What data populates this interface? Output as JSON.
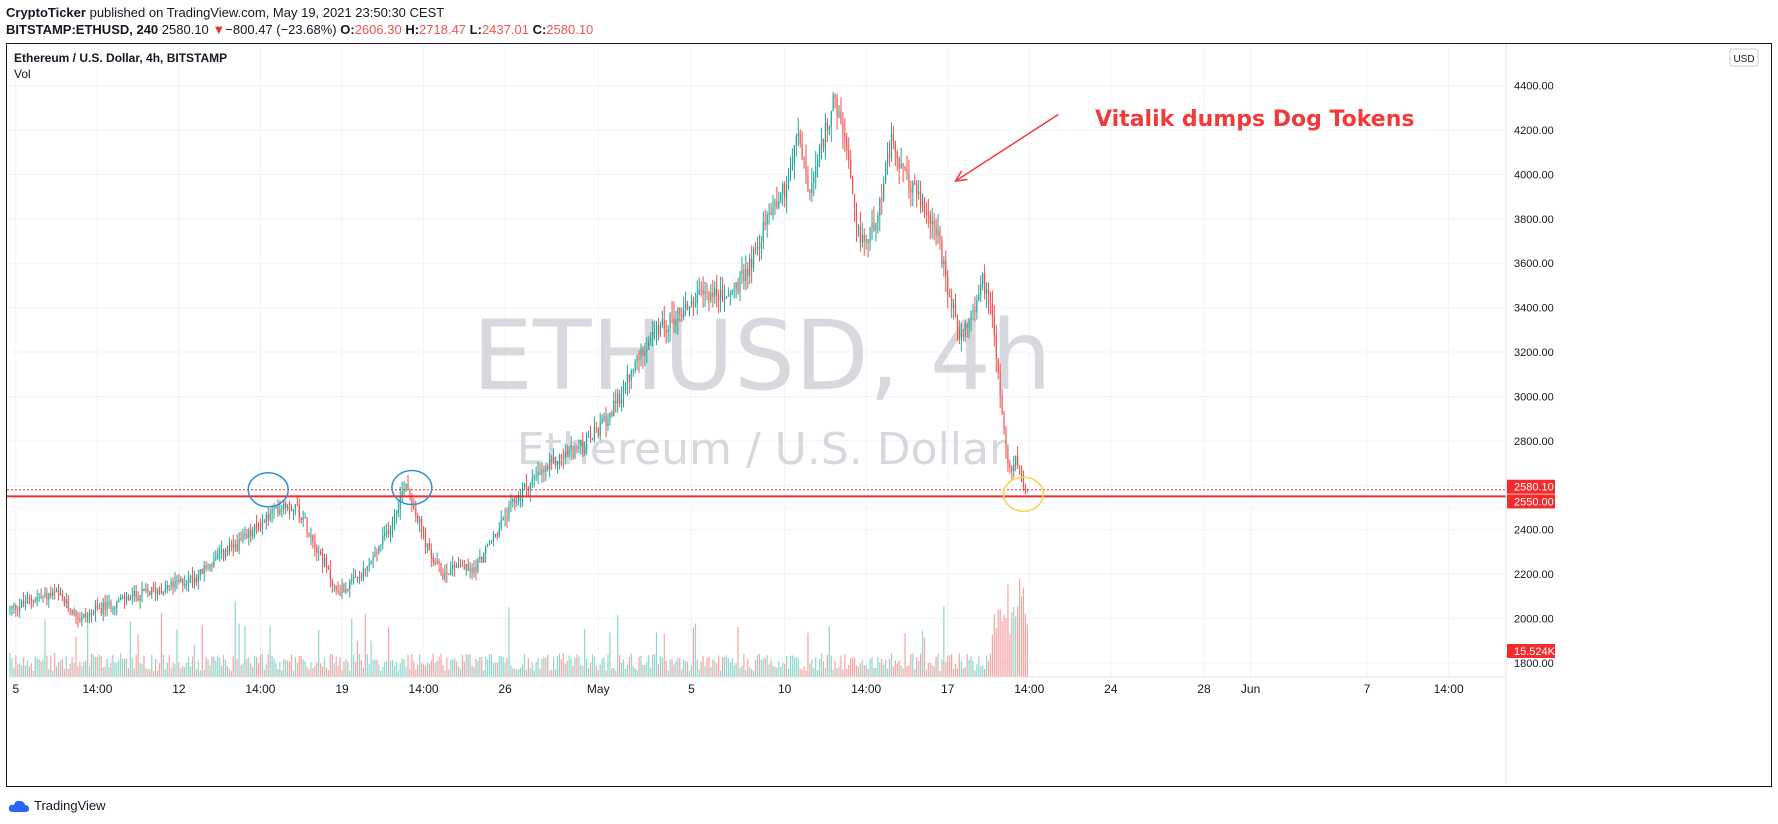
{
  "header": {
    "author": "CryptoTicker",
    "published_text": "published on TradingView.com, May 19, 2021 23:50:30 CEST",
    "symbol": "BITSTAMP:ETHUSD, 240",
    "last": "2580.10",
    "change_arrow": "▼",
    "change": "−800.47 (−23.68%)",
    "o_label": "O:",
    "o": "2606.30",
    "h_label": "H:",
    "h": "2718.47",
    "l_label": "L:",
    "l": "2437.01",
    "c_label": "C:",
    "c": "2580.10"
  },
  "chart_info": {
    "title": "Ethereum / U.S. Dollar, 4h, BITSTAMP",
    "vol_label": "Vol",
    "currency_button": "USD",
    "watermark_main": "ETHUSD, 4h",
    "watermark_sub": "Ethereum / U.S. Dollar"
  },
  "annotation": {
    "text": "Vitalik dumps Dog Tokens"
  },
  "footer": {
    "brand": "TradingView"
  },
  "colors": {
    "up": "#26a69a",
    "down": "#ef5350",
    "up_vol": "#8fd6cc",
    "down_vol": "#f4a5a3",
    "annotation": "#f23a3a",
    "level_line": "#f22c2c",
    "circle_blue": "#2f8fd8",
    "circle_yellow": "#f5d742"
  },
  "chart_data": {
    "type": "candlestick",
    "title": "Ethereum / U.S. Dollar, 4h, BITSTAMP",
    "interval": "4h",
    "ylim": [
      1700,
      4600
    ],
    "y_ticks": [
      1800,
      2000,
      2200,
      2400,
      2600,
      2800,
      3000,
      3200,
      3400,
      3600,
      3800,
      4000,
      4200,
      4400
    ],
    "x_tick_labels": [
      {
        "label": "5",
        "index": 3
      },
      {
        "label": "14:00",
        "index": 45
      },
      {
        "label": "12",
        "index": 87
      },
      {
        "label": "14:00",
        "index": 129
      },
      {
        "label": "19",
        "index": 171
      },
      {
        "label": "14:00",
        "index": 213
      },
      {
        "label": "26",
        "index": 255
      },
      {
        "label": "May",
        "index": 303
      },
      {
        "label": "5",
        "index": 351
      },
      {
        "label": "10",
        "index": 399
      },
      {
        "label": "14:00",
        "index": 441
      },
      {
        "label": "17",
        "index": 483
      },
      {
        "label": "14:00",
        "index": 525
      },
      {
        "label": "24",
        "index": 567
      },
      {
        "label": "28",
        "index": 615
      },
      {
        "label": "Jun",
        "index": 639
      },
      {
        "label": "7",
        "index": 699
      },
      {
        "label": "14:00",
        "index": 741
      }
    ],
    "x_count": 769,
    "last_index": 524,
    "waypoints": [
      [
        0,
        2040
      ],
      [
        12,
        2090
      ],
      [
        24,
        2110
      ],
      [
        36,
        2000
      ],
      [
        48,
        2050
      ],
      [
        60,
        2090
      ],
      [
        72,
        2120
      ],
      [
        84,
        2150
      ],
      [
        96,
        2190
      ],
      [
        108,
        2280
      ],
      [
        120,
        2350
      ],
      [
        132,
        2450
      ],
      [
        141,
        2520
      ],
      [
        148,
        2500
      ],
      [
        155,
        2380
      ],
      [
        162,
        2250
      ],
      [
        168,
        2120
      ],
      [
        175,
        2150
      ],
      [
        182,
        2200
      ],
      [
        189,
        2300
      ],
      [
        196,
        2420
      ],
      [
        204,
        2620
      ],
      [
        210,
        2450
      ],
      [
        216,
        2290
      ],
      [
        223,
        2200
      ],
      [
        230,
        2250
      ],
      [
        238,
        2210
      ],
      [
        247,
        2330
      ],
      [
        256,
        2470
      ],
      [
        264,
        2580
      ],
      [
        272,
        2640
      ],
      [
        280,
        2700
      ],
      [
        288,
        2750
      ],
      [
        296,
        2780
      ],
      [
        304,
        2860
      ],
      [
        312,
        2960
      ],
      [
        320,
        3100
      ],
      [
        328,
        3250
      ],
      [
        336,
        3310
      ],
      [
        344,
        3370
      ],
      [
        352,
        3430
      ],
      [
        360,
        3470
      ],
      [
        368,
        3440
      ],
      [
        376,
        3510
      ],
      [
        384,
        3650
      ],
      [
        392,
        3850
      ],
      [
        400,
        3950
      ],
      [
        406,
        4180
      ],
      [
        412,
        3900
      ],
      [
        418,
        4120
      ],
      [
        424,
        4330
      ],
      [
        430,
        4170
      ],
      [
        436,
        3730
      ],
      [
        442,
        3700
      ],
      [
        448,
        3880
      ],
      [
        454,
        4140
      ],
      [
        460,
        4000
      ],
      [
        466,
        3930
      ],
      [
        471,
        3840
      ],
      [
        477,
        3760
      ],
      [
        483,
        3470
      ],
      [
        489,
        3280
      ],
      [
        495,
        3350
      ],
      [
        501,
        3520
      ],
      [
        506,
        3400
      ],
      [
        509,
        3100
      ],
      [
        512,
        2860
      ],
      [
        514,
        2700
      ],
      [
        516,
        2640
      ],
      [
        518,
        2720
      ],
      [
        520,
        2660
      ],
      [
        522,
        2610
      ],
      [
        524,
        2580
      ]
    ],
    "horizontal_levels": [
      {
        "value": 2580.1,
        "label": "2580.10",
        "style": "dotted",
        "note": "last price"
      },
      {
        "value": 2550.0,
        "label": "2550.00",
        "style": "solid"
      }
    ],
    "volume_label": "15.524K",
    "highlight_circles": [
      {
        "index": 133,
        "price": 2580,
        "color": "blue"
      },
      {
        "index": 207,
        "price": 2590,
        "color": "blue"
      },
      {
        "index": 522,
        "price": 2560,
        "color": "yellow"
      }
    ],
    "annotation_arrow": {
      "from_index": 540,
      "from_price": 4270,
      "to_index": 487,
      "to_price": 3970
    }
  }
}
